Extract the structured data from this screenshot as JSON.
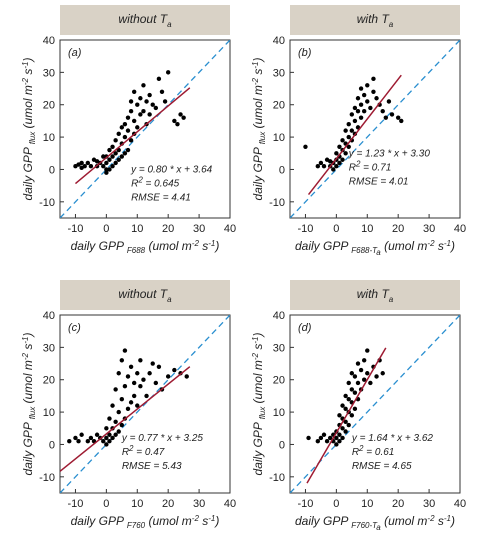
{
  "colors": {
    "header_bg": "#d9d2c6",
    "fit_line": "#9e1b32",
    "one_to_one": "#2a8fd0",
    "points": "#000000",
    "axes": "#333333"
  },
  "chart_data": [
    {
      "type": "scatter",
      "panel": "(a)",
      "header": "without T",
      "header_sub": "a",
      "xlabel_main": "daily GPP",
      "xlabel_sub": "F688",
      "xlabel_sub_sub": "",
      "xlabel_unit": "(umol m",
      "xlabel_unit_sup1": "-2",
      "xlabel_unit_mid": " s",
      "xlabel_unit_sup2": "-1",
      "xlabel_unit_end": ")",
      "ylabel_main": "daily GPP",
      "ylabel_sub": "flux",
      "ylabel_unit": "(umol m",
      "ylabel_unit_sup1": "-2",
      "ylabel_unit_mid": " s",
      "ylabel_unit_sup2": "-1",
      "ylabel_unit_end": ")",
      "xlim": [
        -15,
        40
      ],
      "ylim": [
        -15,
        40
      ],
      "xticks": [
        "-10",
        "0",
        "10",
        "20",
        "30",
        "40"
      ],
      "yticks": [
        "-10",
        "0",
        "10",
        "20",
        "30",
        "40"
      ],
      "xtick_values": [
        -10,
        0,
        10,
        20,
        30,
        40
      ],
      "ytick_values": [
        -10,
        0,
        10,
        20,
        30,
        40
      ],
      "fit": {
        "slope": 0.8,
        "intercept": 3.64,
        "x_range": [
          -10,
          27
        ]
      },
      "one_to_one": true,
      "annotation": {
        "eq": "y = 0.80 * x + 3.64",
        "r2_label": "R",
        "r2_sup": "2",
        "r2_value": " = 0.645",
        "rmse": "RMSE = 4.41"
      },
      "annotation_pos": [
        8,
        -1
      ],
      "points": [
        [
          -10,
          1
        ],
        [
          -9,
          1.5
        ],
        [
          -8,
          0.5
        ],
        [
          -8,
          2
        ],
        [
          -7,
          1
        ],
        [
          -6,
          2
        ],
        [
          -5,
          1
        ],
        [
          -4,
          3
        ],
        [
          -3,
          1
        ],
        [
          -3,
          2.5
        ],
        [
          -2,
          2
        ],
        [
          -1,
          4
        ],
        [
          -1,
          1
        ],
        [
          0,
          0
        ],
        [
          0,
          -1
        ],
        [
          0,
          2
        ],
        [
          0,
          4
        ],
        [
          1,
          3
        ],
        [
          1,
          0
        ],
        [
          1,
          6
        ],
        [
          2,
          1
        ],
        [
          2,
          4
        ],
        [
          2,
          7
        ],
        [
          3,
          2
        ],
        [
          3,
          5
        ],
        [
          3,
          9
        ],
        [
          4,
          3
        ],
        [
          4,
          6
        ],
        [
          4,
          11
        ],
        [
          5,
          4
        ],
        [
          5,
          8
        ],
        [
          5,
          13
        ],
        [
          6,
          10
        ],
        [
          6,
          14
        ],
        [
          6,
          5
        ],
        [
          7,
          16
        ],
        [
          7,
          12
        ],
        [
          7,
          6
        ],
        [
          8,
          18
        ],
        [
          8,
          21
        ],
        [
          8,
          9
        ],
        [
          9,
          15
        ],
        [
          9,
          11
        ],
        [
          9,
          24
        ],
        [
          10,
          20
        ],
        [
          10,
          13
        ],
        [
          11,
          22
        ],
        [
          11,
          17
        ],
        [
          12,
          18
        ],
        [
          12,
          26
        ],
        [
          13,
          21
        ],
        [
          13,
          14
        ],
        [
          14,
          23
        ],
        [
          14,
          17
        ],
        [
          15,
          20
        ],
        [
          16,
          19
        ],
        [
          17,
          28
        ],
        [
          18,
          24
        ],
        [
          19,
          21
        ],
        [
          20,
          30
        ],
        [
          22,
          15
        ],
        [
          23,
          14
        ],
        [
          24,
          17
        ],
        [
          25,
          16
        ]
      ]
    },
    {
      "type": "scatter",
      "panel": "(b)",
      "header": "with T",
      "header_sub": "a",
      "xlabel_main": "daily GPP",
      "xlabel_sub": "F688-T",
      "xlabel_sub_sub": "a",
      "xlabel_unit": "(umol m",
      "xlabel_unit_sup1": "-2",
      "xlabel_unit_mid": " s",
      "xlabel_unit_sup2": "-1",
      "xlabel_unit_end": ")",
      "ylabel_main": "daily GPP",
      "ylabel_sub": "flux",
      "ylabel_unit": "(umol m",
      "ylabel_unit_sup1": "-2",
      "ylabel_unit_mid": " s",
      "ylabel_unit_sup2": "-1",
      "ylabel_unit_end": ")",
      "xlim": [
        -15,
        40
      ],
      "ylim": [
        -15,
        40
      ],
      "xticks": [
        "-10",
        "0",
        "10",
        "20",
        "30",
        "40"
      ],
      "yticks": [
        "-10",
        "0",
        "10",
        "20",
        "30",
        "40"
      ],
      "xtick_values": [
        -10,
        0,
        10,
        20,
        30,
        40
      ],
      "ytick_values": [
        -10,
        0,
        10,
        20,
        30,
        40
      ],
      "fit": {
        "slope": 1.23,
        "intercept": 3.3,
        "x_range": [
          -9,
          21
        ]
      },
      "one_to_one": true,
      "annotation": {
        "eq": "y = 1.23 * x + 3.30",
        "r2_label": "R",
        "r2_sup": "2",
        "r2_value": " = 0.71",
        "rmse": "RMSE = 4.01"
      },
      "annotation_pos": [
        4,
        4
      ],
      "points": [
        [
          -10,
          7
        ],
        [
          -6,
          1
        ],
        [
          -5,
          2
        ],
        [
          -4,
          1
        ],
        [
          -3,
          3
        ],
        [
          -2,
          1
        ],
        [
          -2,
          2.5
        ],
        [
          -1,
          0
        ],
        [
          -1,
          2
        ],
        [
          0,
          1
        ],
        [
          0,
          3
        ],
        [
          0,
          5
        ],
        [
          1,
          2
        ],
        [
          1,
          4
        ],
        [
          1,
          7
        ],
        [
          2,
          3
        ],
        [
          2,
          6
        ],
        [
          2,
          9
        ],
        [
          3,
          5
        ],
        [
          3,
          8
        ],
        [
          3,
          12
        ],
        [
          4,
          7
        ],
        [
          4,
          10
        ],
        [
          4,
          14
        ],
        [
          5,
          9
        ],
        [
          5,
          12
        ],
        [
          5,
          17
        ],
        [
          6,
          11
        ],
        [
          6,
          15
        ],
        [
          6,
          19
        ],
        [
          7,
          13
        ],
        [
          7,
          18
        ],
        [
          7,
          22
        ],
        [
          8,
          16
        ],
        [
          8,
          20
        ],
        [
          8,
          25
        ],
        [
          9,
          18
        ],
        [
          9,
          23
        ],
        [
          10,
          21
        ],
        [
          10,
          26
        ],
        [
          11,
          19
        ],
        [
          12,
          24
        ],
        [
          12,
          28
        ],
        [
          13,
          22
        ],
        [
          14,
          20
        ],
        [
          15,
          18
        ],
        [
          16,
          16
        ],
        [
          17,
          21
        ],
        [
          18,
          17
        ],
        [
          20,
          16
        ],
        [
          21,
          15
        ]
      ]
    },
    {
      "type": "scatter",
      "panel": "(c)",
      "header": "without T",
      "header_sub": "a",
      "xlabel_main": "daily GPP",
      "xlabel_sub": "F760",
      "xlabel_sub_sub": "",
      "xlabel_unit": "(umol m",
      "xlabel_unit_sup1": "-2",
      "xlabel_unit_mid": " s",
      "xlabel_unit_sup2": "-1",
      "xlabel_unit_end": ")",
      "ylabel_main": "daily GPP",
      "ylabel_sub": "flux",
      "ylabel_unit": "(umol m",
      "ylabel_unit_sup1": "-2",
      "ylabel_unit_mid": " s",
      "ylabel_unit_sup2": "-1",
      "ylabel_unit_end": ")",
      "xlim": [
        -15,
        40
      ],
      "ylim": [
        -15,
        40
      ],
      "xticks": [
        "-10",
        "0",
        "10",
        "20",
        "30",
        "40"
      ],
      "yticks": [
        "-10",
        "0",
        "10",
        "20",
        "30",
        "40"
      ],
      "xtick_values": [
        -10,
        0,
        10,
        20,
        30,
        40
      ],
      "ytick_values": [
        -10,
        0,
        10,
        20,
        30,
        40
      ],
      "fit": {
        "slope": 0.77,
        "intercept": 3.25,
        "x_range": [
          -15,
          27
        ]
      },
      "one_to_one": true,
      "annotation": {
        "eq": "y = 0.77 * x + 3.25",
        "r2_label": "R",
        "r2_sup": "2",
        "r2_value": " = 0.47",
        "rmse": "RMSE = 5.43"
      },
      "annotation_pos": [
        5,
        1
      ],
      "points": [
        [
          -12,
          1
        ],
        [
          -10,
          2
        ],
        [
          -9,
          1
        ],
        [
          -8,
          3
        ],
        [
          -6,
          1
        ],
        [
          -5,
          2
        ],
        [
          -4,
          1
        ],
        [
          -3,
          3
        ],
        [
          -2,
          2
        ],
        [
          -1,
          1
        ],
        [
          0,
          0
        ],
        [
          0,
          2
        ],
        [
          0,
          5
        ],
        [
          1,
          1
        ],
        [
          1,
          3
        ],
        [
          1,
          8
        ],
        [
          2,
          2
        ],
        [
          2,
          5
        ],
        [
          2,
          12
        ],
        [
          3,
          3
        ],
        [
          3,
          7
        ],
        [
          3,
          17
        ],
        [
          4,
          4
        ],
        [
          4,
          10
        ],
        [
          4,
          22
        ],
        [
          5,
          6
        ],
        [
          5,
          14
        ],
        [
          5,
          26
        ],
        [
          6,
          8
        ],
        [
          6,
          18
        ],
        [
          6,
          29
        ],
        [
          7,
          11
        ],
        [
          7,
          21
        ],
        [
          8,
          13
        ],
        [
          8,
          24
        ],
        [
          9,
          15
        ],
        [
          9,
          19
        ],
        [
          10,
          22
        ],
        [
          10,
          12
        ],
        [
          11,
          26
        ],
        [
          11,
          18
        ],
        [
          12,
          20
        ],
        [
          13,
          15
        ],
        [
          14,
          22
        ],
        [
          15,
          25
        ],
        [
          16,
          19
        ],
        [
          17,
          24
        ],
        [
          18,
          17
        ],
        [
          20,
          21
        ],
        [
          22,
          23
        ],
        [
          24,
          22
        ],
        [
          26,
          21
        ]
      ]
    },
    {
      "type": "scatter",
      "panel": "(d)",
      "header": "with T",
      "header_sub": "a",
      "xlabel_main": "daily GPP",
      "xlabel_sub": "F760-T",
      "xlabel_sub_sub": "a",
      "xlabel_unit": "(umol m",
      "xlabel_unit_sup1": "-2",
      "xlabel_unit_mid": " s",
      "xlabel_unit_sup2": "-1",
      "xlabel_unit_end": ")",
      "ylabel_main": "daily GPP",
      "ylabel_sub": "flux",
      "ylabel_unit": "(umol m",
      "ylabel_unit_sup1": "-2",
      "ylabel_unit_mid": " s",
      "ylabel_unit_sup2": "-1",
      "ylabel_unit_end": ")",
      "xlim": [
        -15,
        40
      ],
      "ylim": [
        -15,
        40
      ],
      "xticks": [
        "-10",
        "0",
        "10",
        "20",
        "30",
        "40"
      ],
      "yticks": [
        "-10",
        "0",
        "10",
        "20",
        "30",
        "40"
      ],
      "xtick_values": [
        -10,
        0,
        10,
        20,
        30,
        40
      ],
      "ytick_values": [
        -10,
        0,
        10,
        20,
        30,
        40
      ],
      "fit": {
        "slope": 1.64,
        "intercept": 3.62,
        "x_range": [
          -9.5,
          16
        ]
      },
      "one_to_one": true,
      "annotation": {
        "eq": "y = 1.64 * x + 3.62",
        "r2_label": "R",
        "r2_sup": "2",
        "r2_value": " = 0.61",
        "rmse": "RMSE = 4.65"
      },
      "annotation_pos": [
        5,
        1
      ],
      "points": [
        [
          -9,
          2
        ],
        [
          -6,
          1
        ],
        [
          -5,
          2
        ],
        [
          -4,
          3
        ],
        [
          -3,
          1
        ],
        [
          -2,
          2
        ],
        [
          -1,
          3
        ],
        [
          -1,
          1
        ],
        [
          0,
          0
        ],
        [
          0,
          2
        ],
        [
          0,
          4
        ],
        [
          1,
          1
        ],
        [
          1,
          3
        ],
        [
          1,
          6
        ],
        [
          1,
          9
        ],
        [
          2,
          2
        ],
        [
          2,
          5
        ],
        [
          2,
          8
        ],
        [
          2,
          12
        ],
        [
          3,
          4
        ],
        [
          3,
          7
        ],
        [
          3,
          11
        ],
        [
          3,
          15
        ],
        [
          4,
          6
        ],
        [
          4,
          10
        ],
        [
          4,
          14
        ],
        [
          4,
          19
        ],
        [
          5,
          9
        ],
        [
          5,
          13
        ],
        [
          5,
          17
        ],
        [
          5,
          22
        ],
        [
          6,
          11
        ],
        [
          6,
          16
        ],
        [
          6,
          21
        ],
        [
          7,
          14
        ],
        [
          7,
          19
        ],
        [
          7,
          25
        ],
        [
          8,
          17
        ],
        [
          8,
          23
        ],
        [
          9,
          20
        ],
        [
          9,
          26
        ],
        [
          10,
          22
        ],
        [
          10,
          29
        ],
        [
          11,
          19
        ],
        [
          12,
          24
        ],
        [
          13,
          21
        ],
        [
          14,
          26
        ],
        [
          15,
          22
        ]
      ]
    }
  ]
}
